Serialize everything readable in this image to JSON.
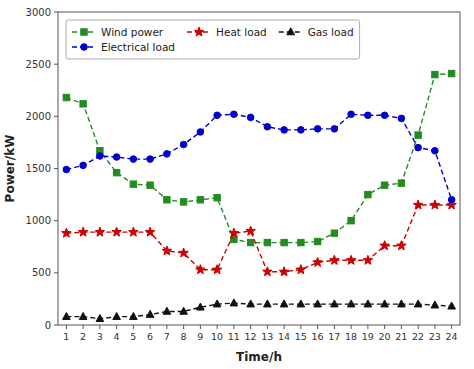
{
  "chart_data": {
    "type": "line",
    "xlabel": "Time/h",
    "ylabel": "Power/kW",
    "x": [
      1,
      2,
      3,
      4,
      5,
      6,
      7,
      8,
      9,
      10,
      11,
      12,
      13,
      14,
      15,
      16,
      17,
      18,
      19,
      20,
      21,
      22,
      23,
      24
    ],
    "series": [
      {
        "name": "Wind power",
        "color": "#228B22",
        "marker": "square",
        "line_style": "dashed",
        "values": [
          2180,
          2120,
          1670,
          1460,
          1350,
          1340,
          1200,
          1180,
          1200,
          1220,
          820,
          790,
          790,
          790,
          790,
          800,
          880,
          1000,
          1250,
          1340,
          1360,
          1820,
          2400,
          2410
        ]
      },
      {
        "name": "Heat load",
        "color": "#CC0000",
        "marker": "star",
        "line_style": "dashed",
        "values": [
          880,
          890,
          890,
          890,
          890,
          890,
          710,
          690,
          530,
          530,
          880,
          900,
          510,
          510,
          530,
          600,
          620,
          620,
          620,
          760,
          760,
          1150,
          1150,
          1150
        ]
      },
      {
        "name": "Gas load",
        "color": "#111111",
        "marker": "triangle",
        "line_style": "dashed",
        "values": [
          80,
          80,
          60,
          80,
          80,
          100,
          130,
          130,
          170,
          200,
          210,
          200,
          200,
          200,
          200,
          200,
          200,
          200,
          200,
          200,
          200,
          200,
          190,
          180
        ]
      },
      {
        "name": "Electrical load",
        "color": "#0000CD",
        "marker": "circle",
        "line_style": "dashed",
        "values": [
          1490,
          1530,
          1620,
          1610,
          1590,
          1590,
          1640,
          1730,
          1850,
          2010,
          2020,
          1990,
          1900,
          1870,
          1870,
          1880,
          1880,
          2020,
          2010,
          2010,
          1980,
          1700,
          1670,
          1200
        ]
      }
    ],
    "xlim": [
      0.5,
      24.5
    ],
    "xticks": [
      1,
      2,
      3,
      4,
      5,
      6,
      7,
      8,
      9,
      10,
      11,
      12,
      13,
      14,
      15,
      16,
      17,
      18,
      19,
      20,
      21,
      22,
      23,
      24
    ],
    "ylim": [
      0,
      3000
    ],
    "yticks": [
      0,
      500,
      1000,
      1500,
      2000,
      2500,
      3000
    ],
    "grid": false,
    "legend": "upper left"
  }
}
